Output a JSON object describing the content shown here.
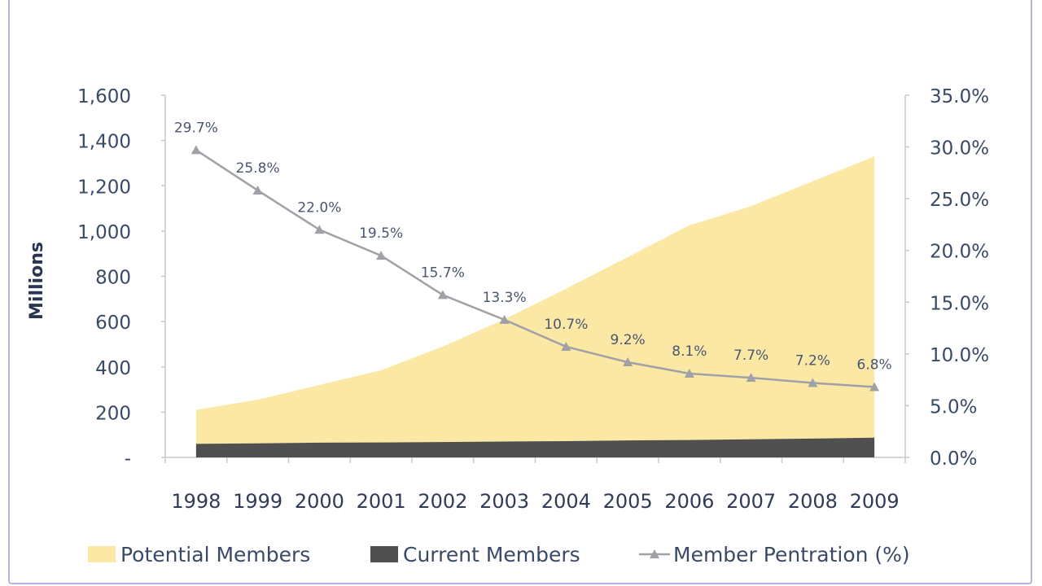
{
  "chart_data": {
    "type": "area+line",
    "categories": [
      "1998",
      "1999",
      "2000",
      "2001",
      "2002",
      "2003",
      "2004",
      "2005",
      "2006",
      "2007",
      "2008",
      "2009"
    ],
    "series": [
      {
        "name": "Potential Members",
        "type": "area",
        "axis": "left",
        "color": "#fae8a4",
        "values": [
          210,
          255,
          320,
          385,
          490,
          610,
          745,
          885,
          1025,
          1110,
          1220,
          1330
        ]
      },
      {
        "name": "Current Members",
        "type": "area",
        "axis": "left",
        "color": "#505050",
        "values": [
          60,
          62,
          65,
          66,
          68,
          70,
          72,
          75,
          77,
          80,
          83,
          87
        ]
      },
      {
        "name": "Member Pentration (%)",
        "type": "line",
        "axis": "right",
        "color": "#a0a0a6",
        "values": [
          29.7,
          25.8,
          22.0,
          19.5,
          15.7,
          13.3,
          10.7,
          9.2,
          8.1,
          7.7,
          7.2,
          6.8
        ],
        "labels": [
          "29.7%",
          "25.8%",
          "22.0%",
          "19.5%",
          "15.7%",
          "13.3%",
          "10.7%",
          "9.2%",
          "8.1%",
          "7.7%",
          "7.2%",
          "6.8%"
        ]
      }
    ],
    "ylabel": "Millions",
    "ylim": [
      0,
      1600
    ],
    "yticks": [
      0,
      200,
      400,
      600,
      800,
      1000,
      1200,
      1400,
      1600
    ],
    "ytick_labels": [
      "-",
      "200",
      "400",
      "600",
      "800",
      "1,000",
      "1,200",
      "1,400",
      "1,600"
    ],
    "y2lim": [
      0,
      35
    ],
    "y2ticks": [
      0,
      5,
      10,
      15,
      20,
      25,
      30,
      35
    ],
    "y2tick_labels": [
      "0.0%",
      "5.0%",
      "10.0%",
      "15.0%",
      "20.0%",
      "25.0%",
      "30.0%",
      "35.0%"
    ],
    "legend": {
      "position": "bottom",
      "items": [
        "Potential Members",
        "Current Members",
        "Member Pentration (%)"
      ]
    }
  }
}
